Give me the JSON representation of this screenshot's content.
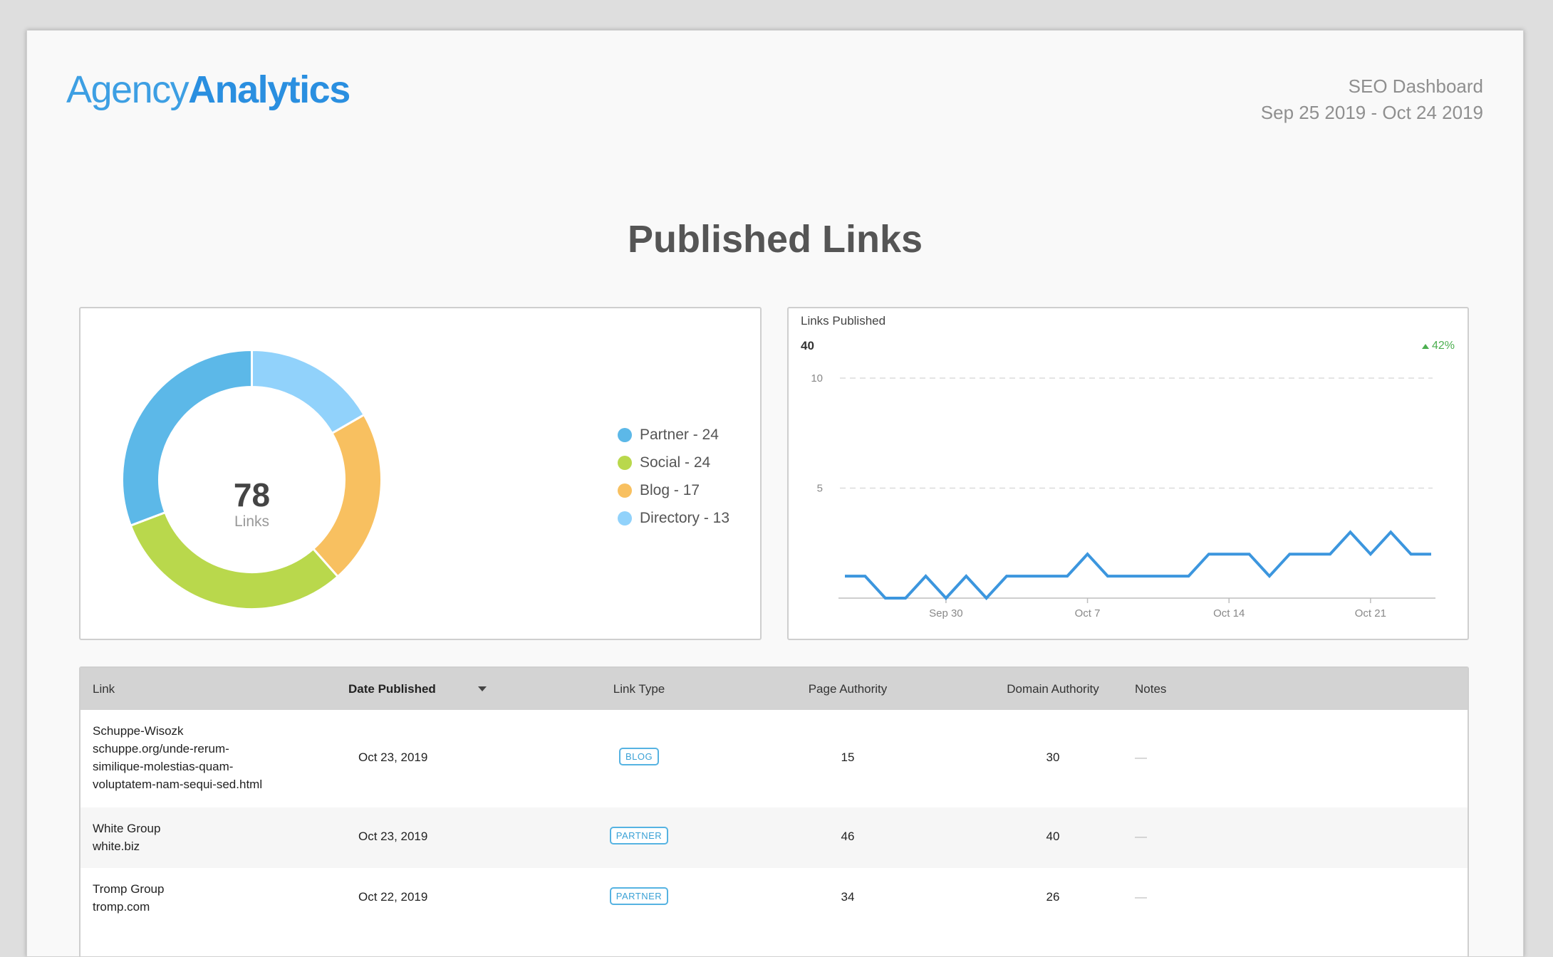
{
  "header": {
    "logo_part1": "Agency",
    "logo_part2": "Analytics",
    "report_name": "SEO Dashboard",
    "date_range": "Sep 25 2019 - Oct 24 2019"
  },
  "page_title": "Published Links",
  "donut": {
    "total": "78",
    "total_label": "Links",
    "legend": [
      {
        "label": "Partner - 24",
        "color": "#5cb8e8"
      },
      {
        "label": "Social - 24",
        "color": "#b9d84c"
      },
      {
        "label": "Blog - 17",
        "color": "#f8c060"
      },
      {
        "label": "Directory - 13",
        "color": "#91d2fb"
      }
    ]
  },
  "chart_data": [
    {
      "type": "pie",
      "categories": [
        "Partner",
        "Social",
        "Blog",
        "Directory"
      ],
      "values": [
        24,
        24,
        17,
        13
      ],
      "colors": [
        "#5cb8e8",
        "#b9d84c",
        "#f8c060",
        "#91d2fb"
      ],
      "center_text": "78 Links"
    },
    {
      "type": "line",
      "title": "Links Published",
      "x": [
        "Sep 25",
        "Sep 26",
        "Sep 27",
        "Sep 28",
        "Sep 29",
        "Sep 30",
        "Oct 1",
        "Oct 2",
        "Oct 3",
        "Oct 4",
        "Oct 5",
        "Oct 6",
        "Oct 7",
        "Oct 8",
        "Oct 9",
        "Oct 10",
        "Oct 11",
        "Oct 12",
        "Oct 13",
        "Oct 14",
        "Oct 15",
        "Oct 16",
        "Oct 17",
        "Oct 18",
        "Oct 19",
        "Oct 20",
        "Oct 21",
        "Oct 22",
        "Oct 23",
        "Oct 24"
      ],
      "series": [
        {
          "values": [
            1,
            1,
            0,
            0,
            1,
            0,
            1,
            0,
            1,
            1,
            1,
            1,
            2,
            1,
            1,
            1,
            1,
            1,
            2,
            2,
            2,
            1,
            2,
            2,
            2,
            3,
            2,
            3,
            2,
            2
          ],
          "color": "#3c96de"
        }
      ],
      "xticks": [
        "Sep 30",
        "Oct 7",
        "Oct 14",
        "Oct 21"
      ],
      "yticks": [
        5,
        10
      ],
      "ylim": [
        0,
        10
      ],
      "grid": true
    }
  ],
  "line_chart": {
    "title": "Links Published",
    "total": "40",
    "change": "42%",
    "ytick_labels": [
      "10",
      "5"
    ],
    "xtick_labels": [
      "Sep 30",
      "Oct 7",
      "Oct 14",
      "Oct 21"
    ]
  },
  "table": {
    "columns": {
      "link": "Link",
      "date": "Date Published",
      "type": "Link Type",
      "page_authority": "Page Authority",
      "domain_authority": "Domain Authority",
      "notes": "Notes"
    },
    "rows": [
      {
        "title": "Schuppe-Wisozk",
        "url_lines": [
          "schuppe.org/unde-rerum-",
          "similique-molestias-quam-",
          "voluptatem-nam-sequi-sed.html"
        ],
        "date": "Oct 23, 2019",
        "type": "BLOG",
        "page_authority": "15",
        "domain_authority": "30",
        "notes": "—"
      },
      {
        "title": "White Group",
        "url_lines": [
          "white.biz"
        ],
        "date": "Oct 23, 2019",
        "type": "PARTNER",
        "page_authority": "46",
        "domain_authority": "40",
        "notes": "—"
      },
      {
        "title": "Tromp Group",
        "url_lines": [
          "tromp.com"
        ],
        "date": "Oct 22, 2019",
        "type": "PARTNER",
        "page_authority": "34",
        "domain_authority": "26",
        "notes": "—"
      }
    ]
  }
}
